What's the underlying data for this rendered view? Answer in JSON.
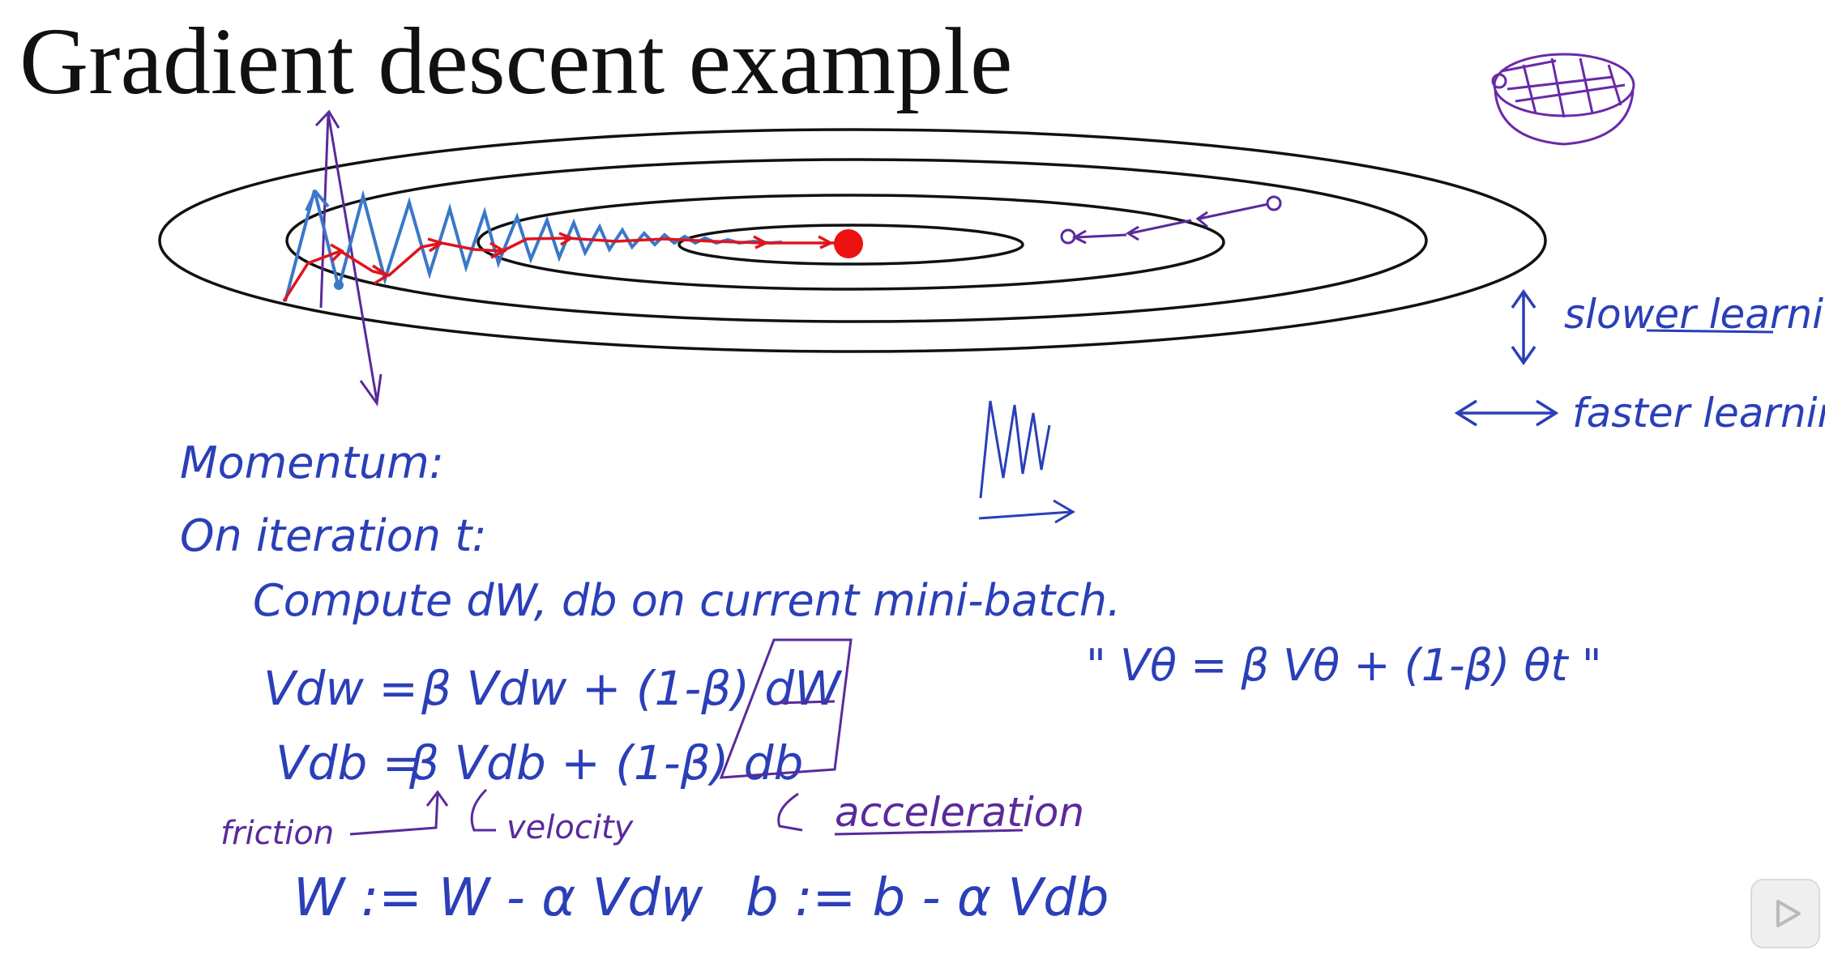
{
  "title": "Gradient descent example",
  "annotations": {
    "slower": "slower learning",
    "faster": "faster learning",
    "momentum": "Momentum:",
    "iteration": "On iteration t:",
    "compute": "Compute dW, db on current mini-batch.",
    "vdw_lhs": "Vdw =",
    "vdw_rhs": "β Vdw + (1-β) dW",
    "vdb_lhs": "Vdb =",
    "vdb_rhs": "β Vdb + (1-β) db",
    "ewa": "\" Vθ = β Vθ + (1-β) θt \"",
    "friction": "friction",
    "velocity": "velocity",
    "acceleration": "acceleration",
    "update_w": "W := W - α Vdw",
    "update_b": "b := b - α Vdb"
  },
  "colors": {
    "ink_blue": "#2a3fb8",
    "ink_purple": "#5a2a9a",
    "path_blue": "#3a78c8",
    "path_red": "#e0141c",
    "minimum": "#ee1111"
  },
  "icons": [
    "bowl-sketch-icon",
    "video-play-icon"
  ]
}
